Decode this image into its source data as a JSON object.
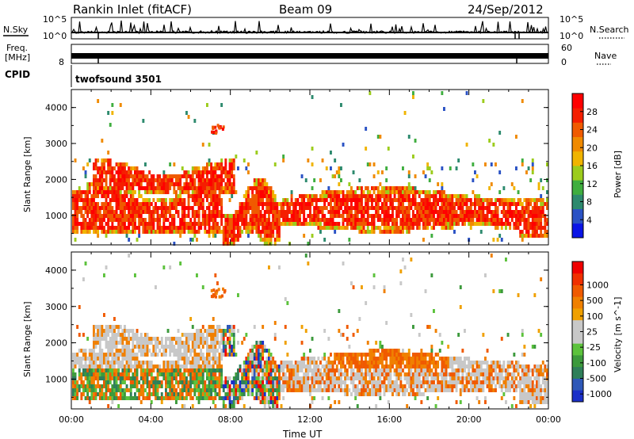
{
  "header": {
    "station": "Rankin Inlet (fitACF)",
    "beam": "Beam 09",
    "date": "24/Sep/2012"
  },
  "panels": {
    "nsky_label": "N.Sky",
    "nsearch_label": "N.Search",
    "nsky_ticks": [
      "10^5",
      "10^0"
    ],
    "nsearch_ticks": [
      "10^5",
      "10^0"
    ],
    "freq_label": "Freq.",
    "freq_unit": "[MHz]",
    "freq_tick": "8",
    "nave_label": "Nave",
    "nave_ticks": [
      "60",
      "0"
    ],
    "cpid_label": "CPID",
    "cpid_value": "twofsound 3501"
  },
  "chart_data": [
    {
      "type": "heatmap",
      "parameter": "Power",
      "xlabel": "Time UT",
      "ylabel": "Slant Range [km]",
      "x_ticks": [
        "00:00",
        "04:00",
        "08:00",
        "12:00",
        "16:00",
        "20:00",
        "00:00"
      ],
      "xlim": [
        0,
        24
      ],
      "ylim": [
        180,
        4500
      ],
      "y_ticks": [
        "1000",
        "2000",
        "3000",
        "4000"
      ],
      "colorbar": {
        "label": "Power [dB]",
        "ticks": [
          "4",
          "8",
          "12",
          "16",
          "20",
          "24",
          "28"
        ],
        "colors": [
          "#0a14e6",
          "#2a52c4",
          "#2d8a6e",
          "#3fae3f",
          "#9ccc1c",
          "#f0b400",
          "#f08a00",
          "#f05a00",
          "#f51e00",
          "#ff0000"
        ]
      }
    },
    {
      "type": "heatmap",
      "parameter": "Velocity",
      "xlabel": "Time UT",
      "ylabel": "Slant Range [km]",
      "x_ticks": [
        "00:00",
        "04:00",
        "08:00",
        "12:00",
        "16:00",
        "20:00",
        "00:00"
      ],
      "xlim": [
        0,
        24
      ],
      "ylim": [
        180,
        4500
      ],
      "y_ticks": [
        "1000",
        "2000",
        "3000",
        "4000"
      ],
      "colorbar": {
        "label": "Velocity [m s^-1]",
        "ticks": [
          "1000",
          "500",
          "100",
          "25",
          "-25",
          "-100",
          "-500",
          "-1000"
        ],
        "colors": [
          "#1a2fc8",
          "#2e58b8",
          "#2f7f5a",
          "#3c9a3c",
          "#5cc23c",
          "#c8c8c8",
          "#c8c8c8",
          "#f0a000",
          "#f08000",
          "#f05a00",
          "#f03000",
          "#f00000"
        ]
      }
    }
  ]
}
